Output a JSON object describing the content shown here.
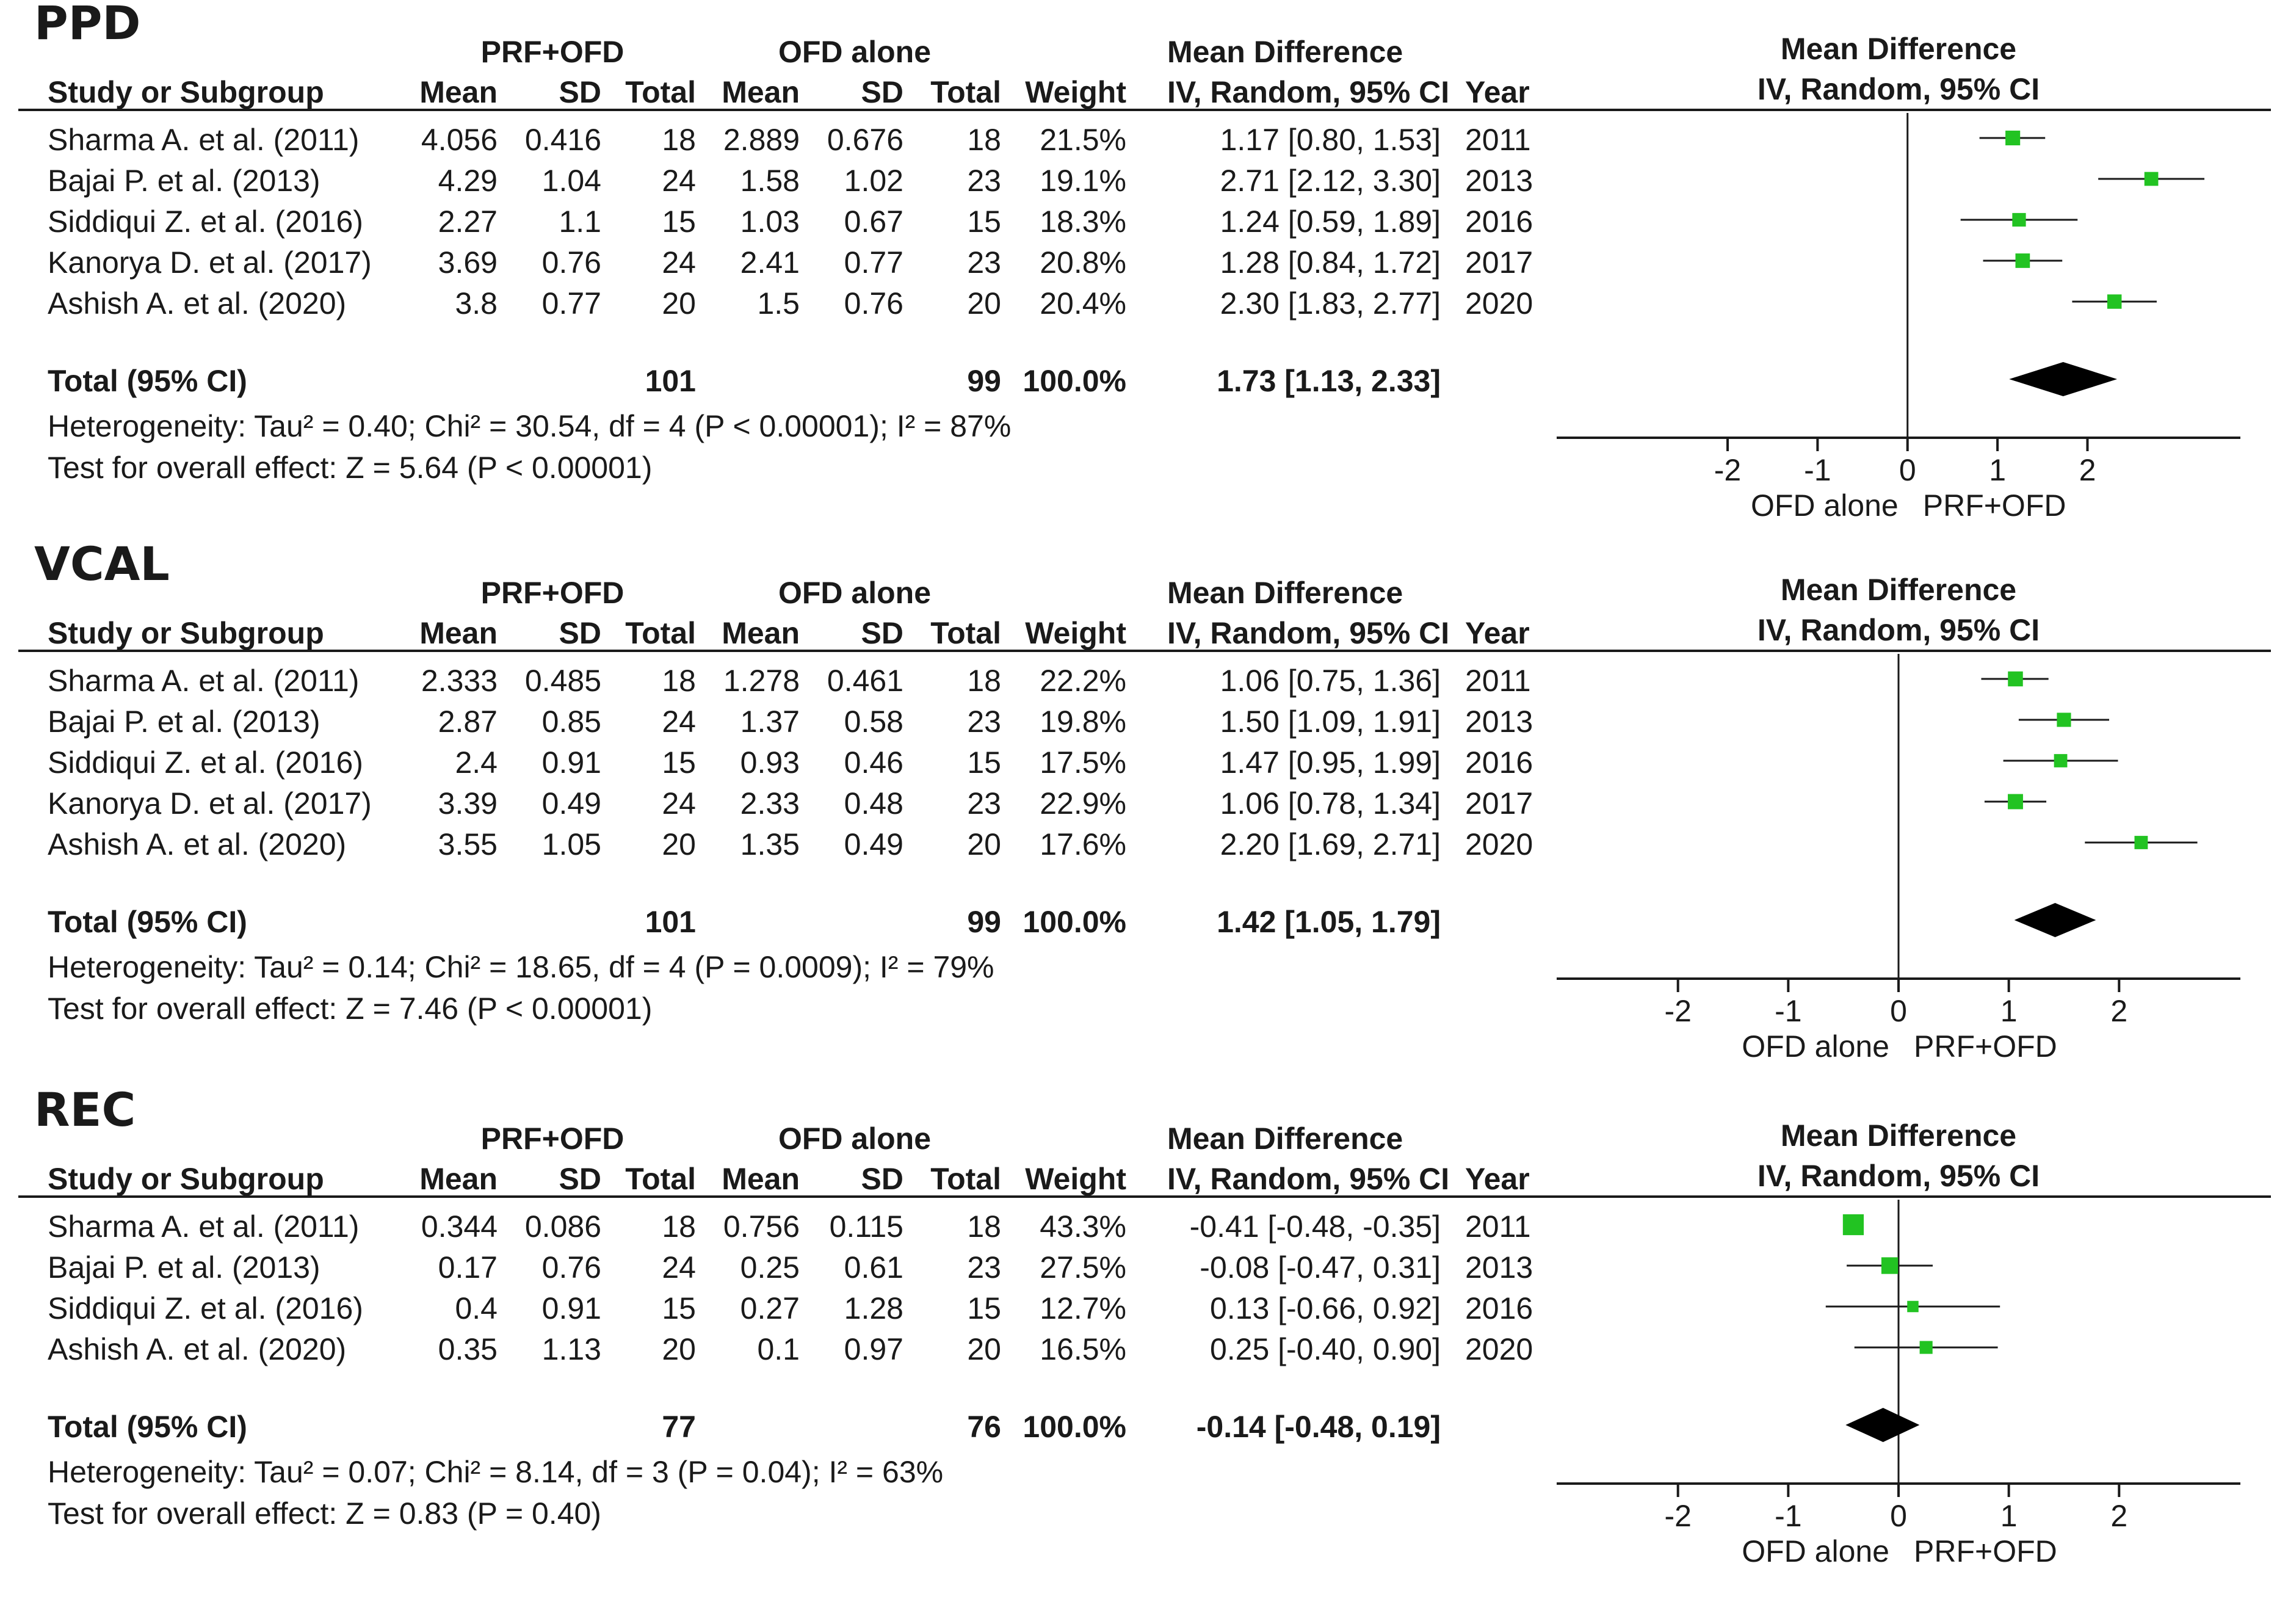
{
  "headers": {
    "group1": "PRF+OFD",
    "group2": "OFD alone",
    "md": "Mean Difference",
    "study": "Study or Subgroup",
    "mean": "Mean",
    "sd": "SD",
    "total": "Total",
    "weight": "Weight",
    "ci": "IV, Random, 95% CI",
    "year": "Year",
    "plot_md": "Mean Difference",
    "plot_ci": "IV, Random, 95% CI",
    "favours_left": "OFD alone",
    "favours_right": "PRF+OFD"
  },
  "chart_data": [
    {
      "type": "forest",
      "title": "PPD",
      "studies": [
        {
          "name": "Sharma A. et al. (2011)",
          "m1": "4.056",
          "sd1": "0.416",
          "n1": "18",
          "m2": "2.889",
          "sd2": "0.676",
          "n2": "18",
          "weight": "21.5%",
          "ci_text": "1.17 [0.80, 1.53]",
          "year": "2011",
          "md": 1.17,
          "lo": 0.8,
          "hi": 1.53,
          "w": 21.5
        },
        {
          "name": "Bajai P. et al. (2013)",
          "m1": "4.29",
          "sd1": "1.04",
          "n1": "24",
          "m2": "1.58",
          "sd2": "1.02",
          "n2": "23",
          "weight": "19.1%",
          "ci_text": "2.71 [2.12, 3.30]",
          "year": "2013",
          "md": 2.71,
          "lo": 2.12,
          "hi": 3.3,
          "w": 19.1
        },
        {
          "name": "Siddiqui Z. et al. (2016)",
          "m1": "2.27",
          "sd1": "1.1",
          "n1": "15",
          "m2": "1.03",
          "sd2": "0.67",
          "n2": "15",
          "weight": "18.3%",
          "ci_text": "1.24 [0.59, 1.89]",
          "year": "2016",
          "md": 1.24,
          "lo": 0.59,
          "hi": 1.89,
          "w": 18.3
        },
        {
          "name": "Kanorya D. et al. (2017)",
          "m1": "3.69",
          "sd1": "0.76",
          "n1": "24",
          "m2": "2.41",
          "sd2": "0.77",
          "n2": "23",
          "weight": "20.8%",
          "ci_text": "1.28 [0.84, 1.72]",
          "year": "2017",
          "md": 1.28,
          "lo": 0.84,
          "hi": 1.72,
          "w": 20.8
        },
        {
          "name": "Ashish A. et al. (2020)",
          "m1": "3.8",
          "sd1": "0.77",
          "n1": "20",
          "m2": "1.5",
          "sd2": "0.76",
          "n2": "20",
          "weight": "20.4%",
          "ci_text": "2.30 [1.83, 2.77]",
          "year": "2020",
          "md": 2.3,
          "lo": 1.83,
          "hi": 2.77,
          "w": 20.4
        }
      ],
      "total": {
        "label": "Total (95% CI)",
        "n1": "101",
        "n2": "99",
        "weight": "100.0%",
        "ci_text": "1.73 [1.13, 2.33]",
        "md": 1.73,
        "lo": 1.13,
        "hi": 2.33
      },
      "heterogeneity": "Heterogeneity: Tau² = 0.40; Chi² = 30.54, df = 4 (P < 0.00001); I² = 87%",
      "overall": "Test for overall effect: Z = 5.64 (P < 0.00001)",
      "xlim": [
        -3.9,
        3.7
      ],
      "ticks": [
        -2,
        -1,
        0,
        1,
        2
      ],
      "tick_labels": [
        "-2",
        "-1",
        "0",
        "1",
        "2"
      ]
    },
    {
      "type": "forest",
      "title": "VCAL",
      "studies": [
        {
          "name": "Sharma A. et al. (2011)",
          "m1": "2.333",
          "sd1": "0.485",
          "n1": "18",
          "m2": "1.278",
          "sd2": "0.461",
          "n2": "18",
          "weight": "22.2%",
          "ci_text": "1.06 [0.75, 1.36]",
          "year": "2011",
          "md": 1.06,
          "lo": 0.75,
          "hi": 1.36,
          "w": 22.2
        },
        {
          "name": "Bajai P. et al. (2013)",
          "m1": "2.87",
          "sd1": "0.85",
          "n1": "24",
          "m2": "1.37",
          "sd2": "0.58",
          "n2": "23",
          "weight": "19.8%",
          "ci_text": "1.50 [1.09, 1.91]",
          "year": "2013",
          "md": 1.5,
          "lo": 1.09,
          "hi": 1.91,
          "w": 19.8
        },
        {
          "name": "Siddiqui Z. et al. (2016)",
          "m1": "2.4",
          "sd1": "0.91",
          "n1": "15",
          "m2": "0.93",
          "sd2": "0.46",
          "n2": "15",
          "weight": "17.5%",
          "ci_text": "1.47 [0.95, 1.99]",
          "year": "2016",
          "md": 1.47,
          "lo": 0.95,
          "hi": 1.99,
          "w": 17.5
        },
        {
          "name": "Kanorya D. et al. (2017)",
          "m1": "3.39",
          "sd1": "0.49",
          "n1": "24",
          "m2": "2.33",
          "sd2": "0.48",
          "n2": "23",
          "weight": "22.9%",
          "ci_text": "1.06 [0.78, 1.34]",
          "year": "2017",
          "md": 1.06,
          "lo": 0.78,
          "hi": 1.34,
          "w": 22.9
        },
        {
          "name": "Ashish A. et al. (2020)",
          "m1": "3.55",
          "sd1": "1.05",
          "n1": "20",
          "m2": "1.35",
          "sd2": "0.49",
          "n2": "20",
          "weight": "17.6%",
          "ci_text": "2.20 [1.69, 2.71]",
          "year": "2020",
          "md": 2.2,
          "lo": 1.69,
          "hi": 2.71,
          "w": 17.6
        }
      ],
      "total": {
        "label": "Total (95% CI)",
        "n1": "101",
        "n2": "99",
        "weight": "100.0%",
        "ci_text": "1.42 [1.05, 1.79]",
        "md": 1.42,
        "lo": 1.05,
        "hi": 1.79
      },
      "heterogeneity": "Heterogeneity: Tau² = 0.14; Chi² = 18.65, df = 4 (P = 0.0009); I² = 79%",
      "overall": "Test for overall effect: Z = 7.46 (P < 0.00001)",
      "xlim": [
        -3.1,
        3.1
      ],
      "ticks": [
        -2,
        -1,
        0,
        1,
        2
      ],
      "tick_labels": [
        "-2",
        "-1",
        "0",
        "1",
        "2"
      ]
    },
    {
      "type": "forest",
      "title": "REC",
      "studies": [
        {
          "name": "Sharma A. et al. (2011)",
          "m1": "0.344",
          "sd1": "0.086",
          "n1": "18",
          "m2": "0.756",
          "sd2": "0.115",
          "n2": "18",
          "weight": "43.3%",
          "ci_text": "-0.41 [-0.48, -0.35]",
          "year": "2011",
          "md": -0.41,
          "lo": -0.48,
          "hi": -0.35,
          "w": 43.3
        },
        {
          "name": "Bajai P. et al. (2013)",
          "m1": "0.17",
          "sd1": "0.76",
          "n1": "24",
          "m2": "0.25",
          "sd2": "0.61",
          "n2": "23",
          "weight": "27.5%",
          "ci_text": "-0.08 [-0.47, 0.31]",
          "year": "2013",
          "md": -0.08,
          "lo": -0.47,
          "hi": 0.31,
          "w": 27.5
        },
        {
          "name": "Siddiqui Z. et al. (2016)",
          "m1": "0.4",
          "sd1": "0.91",
          "n1": "15",
          "m2": "0.27",
          "sd2": "1.28",
          "n2": "15",
          "weight": "12.7%",
          "ci_text": "0.13 [-0.66, 0.92]",
          "year": "2016",
          "md": 0.13,
          "lo": -0.66,
          "hi": 0.92,
          "w": 12.7
        },
        {
          "name": "Ashish A. et al. (2020)",
          "m1": "0.35",
          "sd1": "1.13",
          "n1": "20",
          "m2": "0.1",
          "sd2": "0.97",
          "n2": "20",
          "weight": "16.5%",
          "ci_text": "0.25 [-0.40, 0.90]",
          "year": "2020",
          "md": 0.25,
          "lo": -0.4,
          "hi": 0.9,
          "w": 16.5
        }
      ],
      "total": {
        "label": "Total (95% CI)",
        "n1": "77",
        "n2": "76",
        "weight": "100.0%",
        "ci_text": "-0.14 [-0.48, 0.19]",
        "md": -0.14,
        "lo": -0.48,
        "hi": 0.19
      },
      "heterogeneity": "Heterogeneity: Tau² = 0.07; Chi² = 8.14, df = 3 (P = 0.04); I² = 63%",
      "overall": "Test for overall effect: Z = 0.83 (P = 0.40)",
      "xlim": [
        -3.1,
        3.1
      ],
      "ticks": [
        -2,
        -1,
        0,
        1,
        2
      ],
      "tick_labels": [
        "-2",
        "-1",
        "0",
        "1",
        "2"
      ]
    }
  ],
  "colors": {
    "marker": "#22c322",
    "line": "#1a1a1a",
    "diamond": "#000000"
  }
}
